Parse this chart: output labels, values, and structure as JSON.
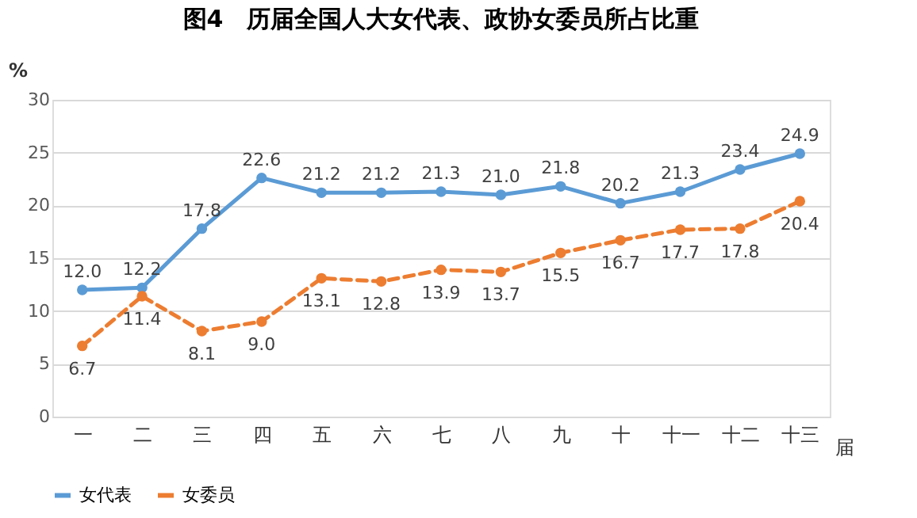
{
  "chart_data": {
    "type": "line",
    "title": "图4　历届全国人大女代表、政协女委员所占比重",
    "xlabel": "届",
    "ylabel": "%",
    "categories": [
      "一",
      "二",
      "三",
      "四",
      "五",
      "六",
      "七",
      "八",
      "九",
      "十",
      "十一",
      "十二",
      "十三"
    ],
    "series": [
      {
        "name": "女代表",
        "color": "#5b9bd5",
        "line_style": "solid",
        "values": [
          12.0,
          12.2,
          17.8,
          22.6,
          21.2,
          21.2,
          21.3,
          21.0,
          21.8,
          20.2,
          21.3,
          23.4,
          24.9
        ],
        "value_labels": [
          "12.0",
          "12.2",
          "17.8",
          "22.6",
          "21.2",
          "21.2",
          "21.3",
          "21.0",
          "21.8",
          "20.2",
          "21.3",
          "23.4",
          "24.9"
        ]
      },
      {
        "name": "女委员",
        "color": "#ed7d31",
        "line_style": "dashed",
        "values": [
          6.7,
          11.4,
          8.1,
          9.0,
          13.1,
          12.8,
          13.9,
          13.7,
          15.5,
          16.7,
          17.7,
          17.8,
          20.4
        ],
        "value_labels": [
          "6.7",
          "11.4",
          "8.1",
          "9.0",
          "13.1",
          "12.8",
          "13.9",
          "13.7",
          "15.5",
          "16.7",
          "17.7",
          "17.8",
          "20.4"
        ]
      }
    ],
    "ylim": [
      0,
      30
    ],
    "yticks": [
      0,
      5,
      10,
      15,
      20,
      25,
      30
    ],
    "grid": "y",
    "legend": "bottom",
    "marker": "circle",
    "data_labels": true
  }
}
